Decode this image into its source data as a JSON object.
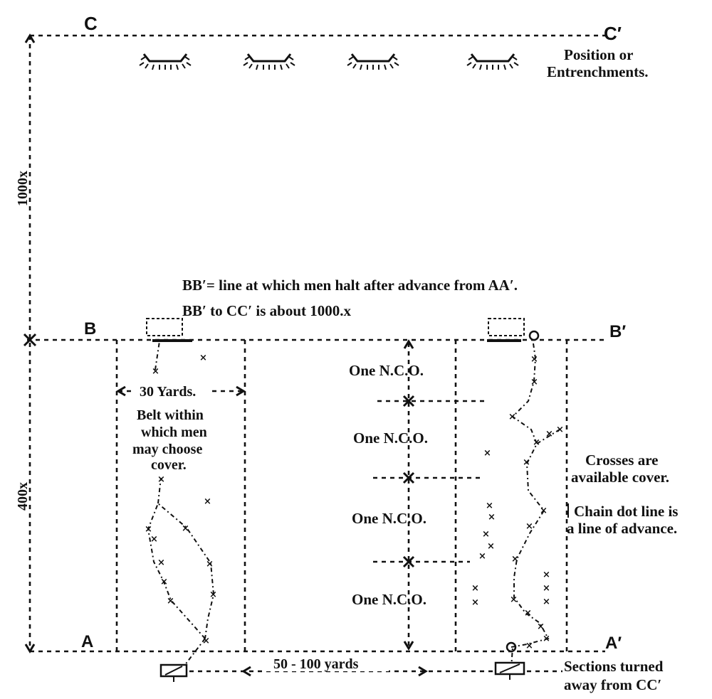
{
  "labels": {
    "C": "C",
    "C_prime": "C′",
    "B": "B",
    "B_prime": "B′",
    "A": "A",
    "A_prime": "A′",
    "dist_1000": "1000x",
    "dist_400": "400x",
    "position_line1": "Position or",
    "position_line2": "Entrenchments.",
    "bb_line1": "BB′= line at which men halt after advance from AA′.",
    "bb_line2": "BB′ to CC′ is about 1000.x",
    "yards_30": "30 Yards.",
    "belt_line1": "Belt within",
    "belt_line2": "which men",
    "belt_line3": "may choose",
    "belt_line4": "cover.",
    "nco_1": "One N.C.O.",
    "nco_2": "One N.C.O.",
    "nco_3": "One N.C.O.",
    "nco_4": "One N.C.O.",
    "crosses_line1": "Crosses are",
    "crosses_line2": "available cover.",
    "chain_line1": "Chain dot line is",
    "chain_line2": "a line of advance.",
    "yards_50_100": "50 - 100 yards",
    "sections_line1": "Sections turned",
    "sections_line2": "away from CC′"
  },
  "entrenchments": [
    "entrenchment-1",
    "entrenchment-2",
    "entrenchment-3",
    "entrenchment-4"
  ],
  "cover_marker": "×"
}
